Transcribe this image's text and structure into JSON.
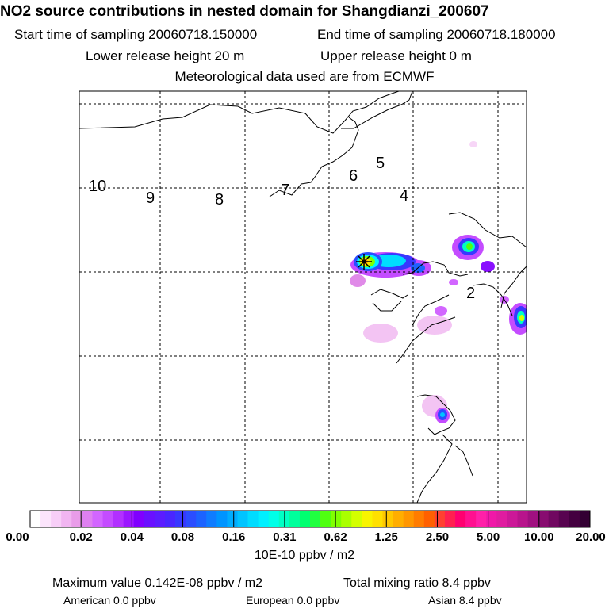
{
  "header": {
    "title": "NO2 source contributions in nested domain for Shangdianzi_200607",
    "start_time": "Start time of sampling 20060718.150000",
    "end_time": "End time of sampling 20060718.180000",
    "lower_release": "Lower release height   20 m",
    "upper_release": "Upper release height    0 m",
    "met_data": "Meteorological data used are from ECMWF"
  },
  "map": {
    "contour_labels": [
      "10",
      "9",
      "8",
      "7",
      "6",
      "5",
      "4",
      "2"
    ],
    "source_marker": "receptor-star-marker"
  },
  "colorbar": {
    "ticks": [
      "0.00",
      "0.02",
      "0.04",
      "0.08",
      "0.16",
      "0.31",
      "0.62",
      "1.25",
      "2.50",
      "5.00",
      "10.00",
      "20.00"
    ],
    "colors": [
      "#ffffff",
      "#fbe4fb",
      "#f7cef7",
      "#f1b5f1",
      "#e99ce9",
      "#de80f0",
      "#d266ff",
      "#c44cff",
      "#b230ff",
      "#9b16ff",
      "#8000ff",
      "#6a10ff",
      "#5c1cff",
      "#4a26ff",
      "#3838ff",
      "#2b4dff",
      "#1c63ff",
      "#0f7cff",
      "#0094ff",
      "#00acff",
      "#00c4ff",
      "#00dcff",
      "#00f0ff",
      "#00ffe8",
      "#00ffc4",
      "#00ff9c",
      "#00ff70",
      "#20ff40",
      "#50ff10",
      "#80ff00",
      "#aaff00",
      "#d4ff00",
      "#f8f400",
      "#ffe000",
      "#ffc800",
      "#ffae00",
      "#ff9600",
      "#ff7c00",
      "#ff6000",
      "#ff4030",
      "#ff2050",
      "#ff0070",
      "#ff1090",
      "#ff20a8",
      "#f018a8",
      "#e01ca0",
      "#cc1898",
      "#b8148c",
      "#a01080",
      "#880c70",
      "#700860",
      "#580450",
      "#440040",
      "#330033"
    ],
    "unit": "10E-10 ppbv / m2"
  },
  "stats": {
    "max_value": "Maximum value  0.142E-08 ppbv / m2",
    "total_mixing": "Total mixing ratio      8.4 ppbv",
    "american": "American        0.0 ppbv",
    "european": "European       0.0 ppbv",
    "asian": "Asian       8.4 ppbv"
  }
}
